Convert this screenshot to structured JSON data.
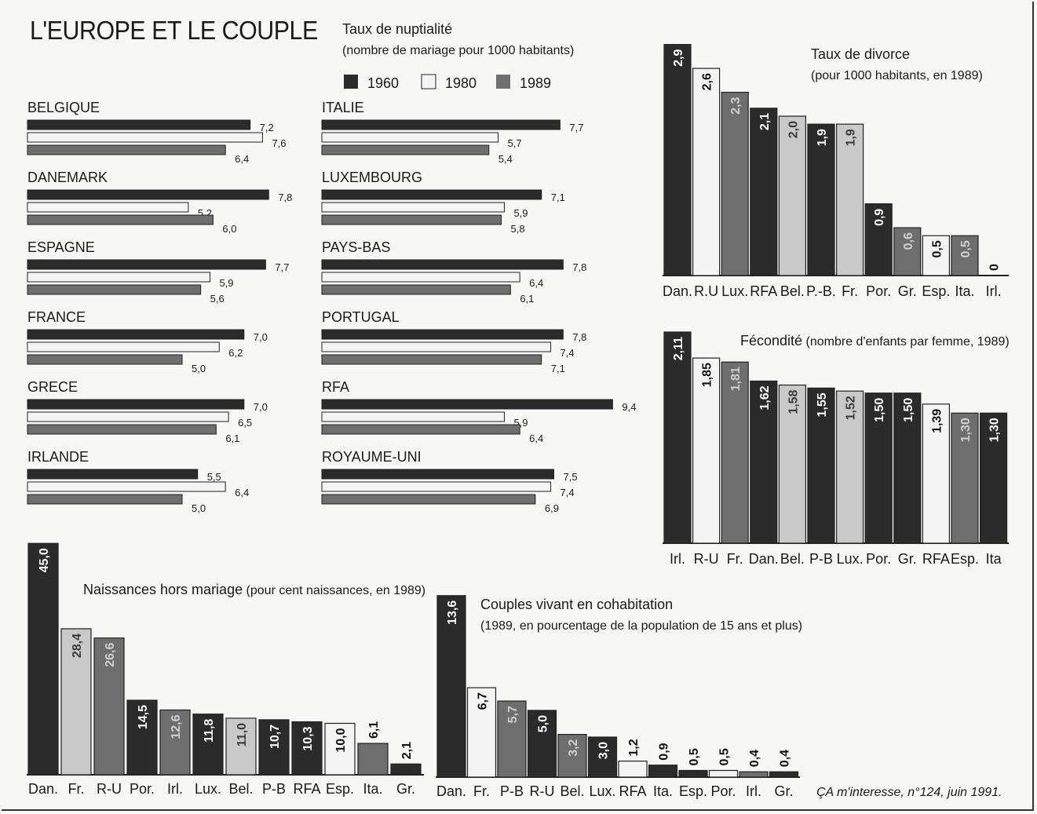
{
  "title": "L'EUROPE ET LE COUPLE",
  "source": "ÇA m'interesse, n°124, juin 1991.",
  "colors": {
    "y1960": "#2b2b2b",
    "y1980": "#f4f4f4",
    "y1989": "#6e6e6e",
    "light": "#c9c9c9"
  },
  "chart_data": [
    {
      "id": "nuptialite",
      "type": "bar",
      "orientation": "horizontal",
      "title": "Taux de nuptialité",
      "subtitle": "(nombre de mariage pour 1000 habitants)",
      "legend": [
        "1960",
        "1980",
        "1989"
      ],
      "countries": [
        {
          "name": "BELGIQUE",
          "values": [
            7.2,
            7.6,
            6.4
          ],
          "labels": [
            "7,2",
            "7,6",
            "6,4"
          ]
        },
        {
          "name": "DANEMARK",
          "values": [
            7.8,
            5.2,
            6.0
          ],
          "labels": [
            "7,8",
            "5,2",
            "6,0"
          ]
        },
        {
          "name": "ESPAGNE",
          "values": [
            7.7,
            5.9,
            5.6
          ],
          "labels": [
            "7,7",
            "5,9",
            "5,6"
          ]
        },
        {
          "name": "FRANCE",
          "values": [
            7.0,
            6.2,
            5.0
          ],
          "labels": [
            "7,0",
            "6,2",
            "5,0"
          ]
        },
        {
          "name": "GRECE",
          "values": [
            7.0,
            6.5,
            6.1
          ],
          "labels": [
            "7,0",
            "6,5",
            "6,1"
          ]
        },
        {
          "name": "IRLANDE",
          "values": [
            5.5,
            6.4,
            5.0
          ],
          "labels": [
            "5,5",
            "6,4",
            "5,0"
          ]
        },
        {
          "name": "ITALIE",
          "values": [
            7.7,
            5.7,
            5.4
          ],
          "labels": [
            "7,7",
            "5,7",
            "5,4"
          ]
        },
        {
          "name": "LUXEMBOURG",
          "values": [
            7.1,
            5.9,
            5.8
          ],
          "labels": [
            "7,1",
            "5,9",
            "5,8"
          ]
        },
        {
          "name": "PAYS-BAS",
          "values": [
            7.8,
            6.4,
            6.1
          ],
          "labels": [
            "7,8",
            "6,4",
            "6,1"
          ]
        },
        {
          "name": "PORTUGAL",
          "values": [
            7.8,
            7.4,
            7.1
          ],
          "labels": [
            "7,8",
            "7,4",
            "7,1"
          ]
        },
        {
          "name": "RFA",
          "values": [
            9.4,
            5.9,
            6.4
          ],
          "labels": [
            "9,4",
            "5,9",
            "6,4"
          ]
        },
        {
          "name": "ROYAUME-UNI",
          "values": [
            7.5,
            7.4,
            6.9
          ],
          "labels": [
            "7,5",
            "7,4",
            "6,9"
          ]
        }
      ]
    },
    {
      "id": "divorce",
      "type": "bar",
      "title": "Taux de divorce",
      "subtitle": "(pour 1000 habitants, en 1989)",
      "categories": [
        "Dan.",
        "R.U",
        "Lux.",
        "RFA",
        "Bel.",
        "P.-B.",
        "Fr.",
        "Por.",
        "Gr.",
        "Esp.",
        "Ita.",
        "Irl."
      ],
      "values": [
        2.9,
        2.6,
        2.3,
        2.1,
        2.0,
        1.9,
        1.9,
        0.9,
        0.6,
        0.5,
        0.5,
        0
      ],
      "labels": [
        "2,9",
        "2,6",
        "2,3",
        "2,1",
        "2,0",
        "1,9",
        "1,9",
        "0,9",
        "0,6",
        "0,5",
        "0,5",
        "0"
      ],
      "styles": [
        "dark",
        "white",
        "mid",
        "dark",
        "light",
        "dark",
        "light",
        "dark",
        "mid",
        "white",
        "mid",
        "white"
      ]
    },
    {
      "id": "fecondite",
      "type": "bar",
      "title": "Fécondité",
      "subtitle": "(nombre d'enfants par femme, 1989)",
      "categories": [
        "Irl.",
        "R-U",
        "Fr.",
        "Dan.",
        "Bel.",
        "P-B",
        "Lux.",
        "Por.",
        "Gr.",
        "RFA",
        "Esp.",
        "Ita"
      ],
      "values": [
        2.11,
        1.85,
        1.81,
        1.62,
        1.58,
        1.55,
        1.52,
        1.5,
        1.5,
        1.39,
        1.3,
        1.3
      ],
      "labels": [
        "2,11",
        "1,85",
        "1,81",
        "1,62",
        "1,58",
        "1,55",
        "1,52",
        "1,50",
        "1,50",
        "1,39",
        "1,30",
        "1,30"
      ],
      "styles": [
        "dark",
        "white",
        "mid",
        "dark",
        "light",
        "dark",
        "light",
        "dark",
        "dark",
        "white",
        "mid",
        "dark"
      ]
    },
    {
      "id": "hors-mariage",
      "type": "bar",
      "title": "Naissances hors mariage",
      "subtitle": "(pour cent naissances, en 1989)",
      "categories": [
        "Dan.",
        "Fr.",
        "R-U",
        "Por.",
        "Irl.",
        "Lux.",
        "Bel.",
        "P-B",
        "RFA",
        "Esp.",
        "Ita.",
        "Gr."
      ],
      "values": [
        45.0,
        28.4,
        26.6,
        14.5,
        12.6,
        11.8,
        11.0,
        10.7,
        10.3,
        10.0,
        6.1,
        2.1
      ],
      "labels": [
        "45,0",
        "28,4",
        "26,6",
        "14,5",
        "12,6",
        "11,8",
        "11,0",
        "10,7",
        "10,3",
        "10,0",
        "6,1",
        "2,1"
      ],
      "styles": [
        "dark",
        "light",
        "mid",
        "dark",
        "mid",
        "dark",
        "light",
        "dark",
        "dark",
        "white",
        "mid",
        "dark"
      ]
    },
    {
      "id": "cohabitation",
      "type": "bar",
      "title": "Couples vivant en cohabitation",
      "subtitle": "(1989, en pourcentage de la population de 15 ans et plus)",
      "categories": [
        "Dan.",
        "Fr.",
        "P-B",
        "R-U",
        "Bel.",
        "Lux.",
        "RFA",
        "Ita.",
        "Esp.",
        "Por.",
        "Irl.",
        "Gr."
      ],
      "values": [
        13.6,
        6.7,
        5.7,
        5.0,
        3.2,
        3.0,
        1.2,
        0.9,
        0.5,
        0.5,
        0.4,
        0.4
      ],
      "labels": [
        "13,6",
        "6,7",
        "5,7",
        "5,0",
        "3,2",
        "3,0",
        "1,2",
        "0,9",
        "0,5",
        "0,5",
        "0,4",
        "0,4"
      ],
      "styles": [
        "dark",
        "white",
        "mid",
        "dark",
        "mid",
        "dark",
        "white",
        "dark",
        "dark",
        "white",
        "mid",
        "dark"
      ]
    }
  ]
}
